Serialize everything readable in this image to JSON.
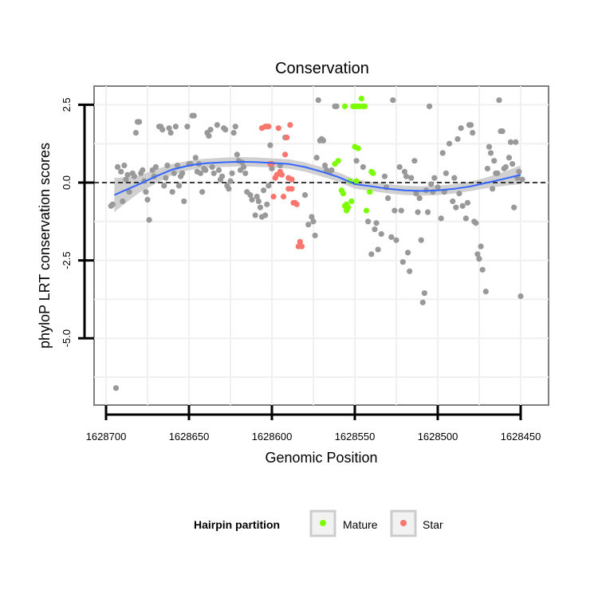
{
  "chart_data": {
    "type": "scatter",
    "title": "Conservation",
    "xlabel": "Genomic Position",
    "ylabel": "phyloP LRT conservation scores",
    "xlim": [
      1628700,
      1628450
    ],
    "x_reversed": true,
    "ylim": [
      -7,
      3
    ],
    "x_ticks": [
      {
        "value": 1628700,
        "label": "1628700"
      },
      {
        "value": 1628650,
        "label": "1628650"
      },
      {
        "value": 1628600,
        "label": "1628600"
      },
      {
        "value": 1628550,
        "label": "1628550"
      },
      {
        "value": 1628500,
        "label": "1628500"
      },
      {
        "value": 1628450,
        "label": "1628450"
      }
    ],
    "y_ticks": [
      {
        "value": 2.5,
        "label": "2.5"
      },
      {
        "value": 0,
        "label": "0.0"
      },
      {
        "value": -2.5,
        "label": "-2.5"
      },
      {
        "value": -5,
        "label": "-5.0"
      }
    ],
    "reference_line": {
      "y": 0,
      "style": "dashed",
      "color": "#000000"
    },
    "grid": true,
    "legend": {
      "title": "Hairpin partition",
      "position": "bottom",
      "entries": [
        {
          "label": "Mature",
          "color": "#7cfc00"
        },
        {
          "label": "Star",
          "color": "#f8766d"
        }
      ]
    },
    "colors": {
      "other": "#999999",
      "mature": "#7cfc00",
      "star": "#f8766d",
      "smooth": "#3366ff",
      "band": "#c8c8c8"
    },
    "series": [
      {
        "group": "other",
        "points": [
          [
            1628694,
            -6.6
          ],
          [
            1628696,
            -0.7
          ],
          [
            1628697,
            -0.75
          ],
          [
            1628693,
            0.5
          ],
          [
            1628691,
            0.35
          ],
          [
            1628689,
            0.55
          ],
          [
            1628688,
            0.1
          ],
          [
            1628687,
            0.25
          ],
          [
            1628690,
            -0.6
          ],
          [
            1628686,
            -0.3
          ],
          [
            1628684,
            0.3
          ],
          [
            1628683,
            0.2
          ],
          [
            1628682,
            1.6
          ],
          [
            1628681,
            1.95
          ],
          [
            1628680,
            1.95
          ],
          [
            1628679,
            0.3
          ],
          [
            1628678,
            0.4
          ],
          [
            1628677,
            0.05
          ],
          [
            1628676,
            -0.3
          ],
          [
            1628675,
            -0.55
          ],
          [
            1628674,
            -1.2
          ],
          [
            1628672,
            0.4
          ],
          [
            1628671,
            0.2
          ],
          [
            1628670,
            0.5
          ],
          [
            1628668,
            1.8
          ],
          [
            1628667,
            1.8
          ],
          [
            1628666,
            1.7
          ],
          [
            1628665,
            -0.1
          ],
          [
            1628664,
            0.15
          ],
          [
            1628663,
            0.55
          ],
          [
            1628662,
            1.75
          ],
          [
            1628661,
            1.6
          ],
          [
            1628660,
            -0.3
          ],
          [
            1628659,
            0.3
          ],
          [
            1628658,
            1.8
          ],
          [
            1628657,
            0.55
          ],
          [
            1628656,
            -0.1
          ],
          [
            1628655,
            0.2
          ],
          [
            1628654,
            0.3
          ],
          [
            1628653,
            -0.6
          ],
          [
            1628651,
            1.8
          ],
          [
            1628650,
            0.6
          ],
          [
            1628649,
            0.6
          ],
          [
            1628648,
            2.15
          ],
          [
            1628647,
            2.15
          ],
          [
            1628646,
            0.8
          ],
          [
            1628645,
            0.35
          ],
          [
            1628644,
            0.6
          ],
          [
            1628643,
            0.3
          ],
          [
            1628642,
            -0.3
          ],
          [
            1628641,
            0.45
          ],
          [
            1628640,
            0.4
          ],
          [
            1628639,
            1.6
          ],
          [
            1628638,
            1.5
          ],
          [
            1628637,
            1.7
          ],
          [
            1628636,
            0.5
          ],
          [
            1628635,
            0.3
          ],
          [
            1628633,
            1.85
          ],
          [
            1628632,
            0.4
          ],
          [
            1628631,
            0.1
          ],
          [
            1628630,
            0.2
          ],
          [
            1628629,
            1.75
          ],
          [
            1628628,
            1.7
          ],
          [
            1628627,
            -0.1
          ],
          [
            1628626,
            -0.2
          ],
          [
            1628625,
            0.05
          ],
          [
            1628624,
            0.3
          ],
          [
            1628623,
            1.6
          ],
          [
            1628622,
            1.8
          ],
          [
            1628621,
            0.9
          ],
          [
            1628620,
            0.7
          ],
          [
            1628619,
            0.4
          ],
          [
            1628618,
            0.65
          ],
          [
            1628617,
            0.5
          ],
          [
            1628616,
            0.3
          ],
          [
            1628615,
            -0.3
          ],
          [
            1628613,
            -0.4
          ],
          [
            1628612,
            -0.55
          ],
          [
            1628610,
            -1.05
          ],
          [
            1628609,
            -0.45
          ],
          [
            1628608,
            -0.6
          ],
          [
            1628607,
            -0.8
          ],
          [
            1628606,
            -1.1
          ],
          [
            1628605,
            -0.25
          ],
          [
            1628604,
            -1.05
          ],
          [
            1628603,
            -0.7
          ],
          [
            1628602,
            -0.1
          ],
          [
            1628601,
            1.2
          ],
          [
            1628600,
            0.45
          ],
          [
            1628595,
            0.55
          ],
          [
            1628592,
            1.45
          ],
          [
            1628580,
            -0.4
          ],
          [
            1628578,
            -1.35
          ],
          [
            1628576,
            -1.1
          ],
          [
            1628575,
            -1.25
          ],
          [
            1628574,
            -1.7
          ],
          [
            1628573,
            0.8
          ],
          [
            1628572,
            2.65
          ],
          [
            1628571,
            1.35
          ],
          [
            1628570,
            1.4
          ],
          [
            1628569,
            1.35
          ],
          [
            1628568,
            0.55
          ],
          [
            1628567,
            0.4
          ],
          [
            1628566,
            0.35
          ],
          [
            1628565,
            0.35
          ],
          [
            1628564,
            0.4
          ],
          [
            1628562,
            2.45
          ],
          [
            1628561,
            2.45
          ],
          [
            1628549,
            0.7
          ],
          [
            1628545,
            0.5
          ],
          [
            1628542,
            -1.25
          ],
          [
            1628540,
            -2.3
          ],
          [
            1628538,
            -1.5
          ],
          [
            1628537,
            -1.3
          ],
          [
            1628536,
            -2.15
          ],
          [
            1628534,
            -1.65
          ],
          [
            1628532,
            0.2
          ],
          [
            1628531,
            -0.15
          ],
          [
            1628530,
            -0.5
          ],
          [
            1628528,
            -1.75
          ],
          [
            1628527,
            2.65
          ],
          [
            1628526,
            -0.9
          ],
          [
            1628525,
            -1.85
          ],
          [
            1628523,
            0.5
          ],
          [
            1628522,
            -0.9
          ],
          [
            1628521,
            -2.55
          ],
          [
            1628520,
            0.35
          ],
          [
            1628519,
            0.2
          ],
          [
            1628518,
            -2.25
          ],
          [
            1628517,
            -2.85
          ],
          [
            1628516,
            0.15
          ],
          [
            1628514,
            0.7
          ],
          [
            1628513,
            -0.35
          ],
          [
            1628512,
            -0.95
          ],
          [
            1628511,
            -0.5
          ],
          [
            1628510,
            -1.85
          ],
          [
            1628509,
            -3.85
          ],
          [
            1628508,
            -3.55
          ],
          [
            1628507,
            -0.25
          ],
          [
            1628506,
            -0.95
          ],
          [
            1628505,
            2.45
          ],
          [
            1628504,
            -0.05
          ],
          [
            1628503,
            -0.3
          ],
          [
            1628502,
            0.15
          ],
          [
            1628500,
            -0.15
          ],
          [
            1628498,
            -1.15
          ],
          [
            1628497,
            0.95
          ],
          [
            1628496,
            -0.3
          ],
          [
            1628495,
            0.3
          ],
          [
            1628493,
            1.25
          ],
          [
            1628491,
            -0.6
          ],
          [
            1628490,
            0.15
          ],
          [
            1628489,
            -0.8
          ],
          [
            1628488,
            1.4
          ],
          [
            1628487,
            -0.35
          ],
          [
            1628486,
            1.75
          ],
          [
            1628485,
            -0.75
          ],
          [
            1628483,
            -1.15
          ],
          [
            1628482,
            -0.65
          ],
          [
            1628481,
            1.85
          ],
          [
            1628480,
            1.85
          ],
          [
            1628479,
            1.6
          ],
          [
            1628478,
            -1.25
          ],
          [
            1628477,
            -1.3
          ],
          [
            1628476,
            -2.3
          ],
          [
            1628475,
            -2.45
          ],
          [
            1628474,
            -2.05
          ],
          [
            1628473,
            -2.8
          ],
          [
            1628471,
            -3.5
          ],
          [
            1628470,
            0.45
          ],
          [
            1628469,
            1.15
          ],
          [
            1628468,
            0.95
          ],
          [
            1628467,
            -0.2
          ],
          [
            1628466,
            0.7
          ],
          [
            1628465,
            0.3
          ],
          [
            1628464,
            0.3
          ],
          [
            1628463,
            2.65
          ],
          [
            1628462,
            1.65
          ],
          [
            1628461,
            1.65
          ],
          [
            1628460,
            0.45
          ],
          [
            1628459,
            0.5
          ],
          [
            1628457,
            0.8
          ],
          [
            1628456,
            1.3
          ],
          [
            1628455,
            0.6
          ],
          [
            1628454,
            -0.8
          ],
          [
            1628453,
            1.3
          ],
          [
            1628452,
            0.15
          ],
          [
            1628450,
            -3.65
          ],
          [
            1628451,
            0.35
          ],
          [
            1628449,
            0.1
          ]
        ]
      },
      {
        "group": "mature",
        "name": "Mature",
        "points": [
          [
            1628562,
            0.6
          ],
          [
            1628560,
            0.7
          ],
          [
            1628558,
            -0.25
          ],
          [
            1628557,
            -0.35
          ],
          [
            1628556,
            -0.75
          ],
          [
            1628555,
            -0.9
          ],
          [
            1628554,
            -0.8
          ],
          [
            1628553,
            0.05
          ],
          [
            1628552,
            -0.6
          ],
          [
            1628551,
            2.45
          ],
          [
            1628550,
            2.45
          ],
          [
            1628549,
            2.45
          ],
          [
            1628548,
            2.45
          ],
          [
            1628547,
            2.45
          ],
          [
            1628546,
            2.7
          ],
          [
            1628545,
            2.45
          ],
          [
            1628544,
            2.45
          ],
          [
            1628543,
            -0.9
          ],
          [
            1628541,
            -0.3
          ],
          [
            1628540,
            0.35
          ],
          [
            1628539,
            0.3
          ],
          [
            1628550,
            1.15
          ],
          [
            1628548,
            1.1
          ],
          [
            1628556,
            2.45
          ],
          [
            1628549,
            0.05
          ],
          [
            1628555,
            -0.7
          ]
        ]
      },
      {
        "group": "star",
        "name": "Star",
        "points": [
          [
            1628606,
            1.75
          ],
          [
            1628604,
            1.8
          ],
          [
            1628603,
            1.8
          ],
          [
            1628602,
            1.8
          ],
          [
            1628601,
            0.6
          ],
          [
            1628600,
            0.6
          ],
          [
            1628599,
            -0.45
          ],
          [
            1628598,
            0.15
          ],
          [
            1628597,
            0.25
          ],
          [
            1628596,
            1.75
          ],
          [
            1628595,
            0.35
          ],
          [
            1628594,
            0.25
          ],
          [
            1628593,
            -0.45
          ],
          [
            1628592,
            0.9
          ],
          [
            1628591,
            1.45
          ],
          [
            1628590,
            0.15
          ],
          [
            1628589,
            1.85
          ],
          [
            1628588,
            -0.2
          ],
          [
            1628587,
            -0.65
          ],
          [
            1628586,
            -0.65
          ],
          [
            1628585,
            -0.7
          ],
          [
            1628584,
            -2.05
          ],
          [
            1628583,
            -1.9
          ],
          [
            1628582,
            -2.05
          ],
          [
            1628590,
            -0.2
          ],
          [
            1628588,
            0.1
          ]
        ]
      }
    ],
    "smooth": {
      "x": [
        1628695,
        1628690,
        1628680,
        1628670,
        1628660,
        1628650,
        1628640,
        1628630,
        1628620,
        1628610,
        1628600,
        1628590,
        1628580,
        1628570,
        1628560,
        1628550,
        1628540,
        1628530,
        1628520,
        1628510,
        1628500,
        1628490,
        1628480,
        1628470,
        1628460,
        1628450
      ],
      "y": [
        -0.4,
        -0.28,
        -0.05,
        0.2,
        0.42,
        0.55,
        0.62,
        0.65,
        0.67,
        0.66,
        0.63,
        0.6,
        0.5,
        0.35,
        0.18,
        -0.05,
        -0.12,
        -0.2,
        -0.25,
        -0.27,
        -0.25,
        -0.2,
        -0.12,
        0.0,
        0.12,
        0.25
      ],
      "band": [
        1.1,
        0.9,
        0.55,
        0.45,
        0.35,
        0.3,
        0.3,
        0.3,
        0.3,
        0.3,
        0.3,
        0.3,
        0.3,
        0.3,
        0.3,
        0.3,
        0.3,
        0.3,
        0.3,
        0.3,
        0.3,
        0.3,
        0.3,
        0.35,
        0.45,
        0.6
      ]
    }
  }
}
